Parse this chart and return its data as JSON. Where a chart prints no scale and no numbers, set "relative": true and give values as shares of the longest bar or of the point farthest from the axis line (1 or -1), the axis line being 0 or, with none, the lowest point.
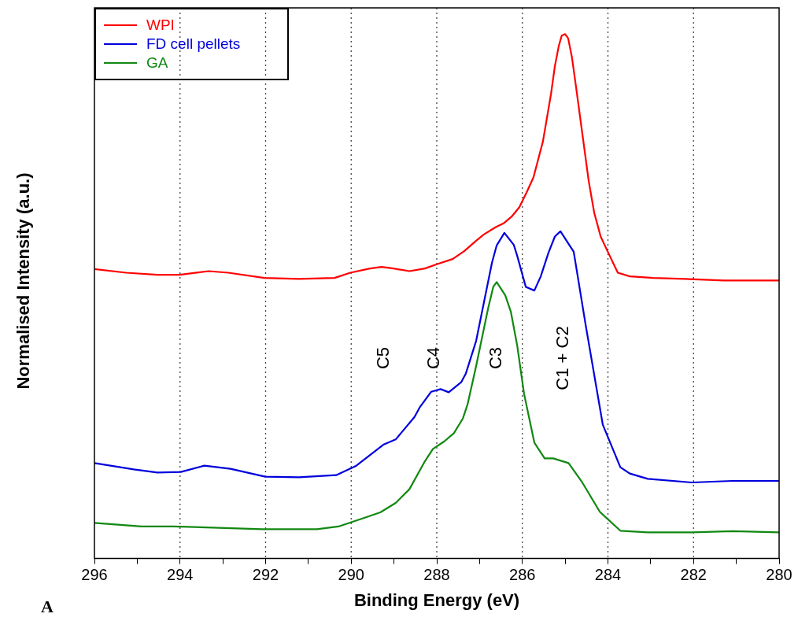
{
  "chart_data": {
    "type": "line",
    "relative": true,
    "xlabel": "Binding Energy (eV)",
    "ylabel": "Normalised Intensity (a.u.)",
    "xlim": [
      296,
      280
    ],
    "xticks": [
      296,
      {
        "value": 295,
        "label": null
      },
      294,
      {
        "value": 293,
        "label": null
      },
      292,
      {
        "value": 291,
        "label": null
      },
      290,
      {
        "value": 289,
        "label": null
      },
      288,
      {
        "value": 287,
        "label": null
      },
      286,
      {
        "value": 285,
        "label": null
      },
      284,
      {
        "value": 283,
        "label": null
      },
      282,
      {
        "value": 281,
        "label": null
      },
      280
    ],
    "legend": "top left",
    "grid": false,
    "marker": "none",
    "line_style": "solid",
    "ref_lines": [
      {
        "axis": "x",
        "value": 294,
        "color": "#444444",
        "line_style": "dotted"
      },
      {
        "axis": "x",
        "value": 292,
        "color": "#444444",
        "line_style": "dotted"
      },
      {
        "axis": "x",
        "value": 290,
        "color": "#444444",
        "line_style": "dotted"
      },
      {
        "axis": "x",
        "value": 288,
        "color": "#444444",
        "line_style": "dotted"
      },
      {
        "axis": "x",
        "value": 286,
        "color": "#444444",
        "line_style": "dotted"
      },
      {
        "axis": "x",
        "value": 284,
        "color": "#444444",
        "line_style": "dotted"
      },
      {
        "axis": "x",
        "value": 282,
        "color": "#444444",
        "line_style": "dotted"
      }
    ],
    "annotations": [
      "C5",
      "C4",
      "C3",
      "C1 + C2",
      "A"
    ],
    "series": [
      {
        "name": "WPI",
        "color": "#ff0000",
        "x": [
          296,
          295.26,
          294.53,
          294.01,
          293.33,
          292.87,
          292.03,
          291.22,
          290.39,
          290.02,
          289.56,
          289.29,
          289.01,
          288.64,
          288.28,
          288.0,
          287.63,
          287.36,
          287.08,
          286.9,
          286.62,
          286.44,
          286.25,
          286.07,
          285.98,
          285.89,
          285.74,
          285.52,
          285.33,
          285.24,
          285.15,
          285.08,
          285.0,
          284.93,
          284.84,
          284.75,
          284.6,
          284.45,
          284.32,
          284.17,
          284.01,
          283.77,
          283.49,
          282.94,
          282.21,
          281.29,
          280
        ],
        "values": [
          0.552,
          0.545,
          0.541,
          0.541,
          0.548,
          0.545,
          0.535,
          0.533,
          0.535,
          0.545,
          0.553,
          0.556,
          0.553,
          0.548,
          0.553,
          0.561,
          0.571,
          0.586,
          0.606,
          0.618,
          0.632,
          0.639,
          0.652,
          0.67,
          0.685,
          0.7,
          0.727,
          0.795,
          0.886,
          0.939,
          0.977,
          0.997,
          1,
          0.992,
          0.955,
          0.902,
          0.811,
          0.72,
          0.659,
          0.614,
          0.586,
          0.545,
          0.538,
          0.535,
          0.533,
          0.53,
          0.53
        ]
      },
      {
        "name": "FD cell pellets",
        "color": "#0000dd",
        "x": [
          296,
          295.08,
          294.53,
          293.98,
          293.43,
          292.82,
          292.01,
          291.22,
          290.35,
          289.88,
          289.25,
          288.96,
          288.52,
          288.4,
          288.13,
          287.91,
          287.72,
          287.43,
          287.32,
          287.08,
          286.71,
          286.6,
          286.42,
          286.2,
          286.12,
          285.92,
          285.72,
          285.57,
          285.39,
          285.24,
          285.11,
          284.8,
          284.52,
          284.12,
          283.71,
          283.49,
          283.07,
          282.04,
          281.1,
          280
        ],
        "values": [
          0.182,
          0.17,
          0.164,
          0.165,
          0.177,
          0.171,
          0.156,
          0.155,
          0.159,
          0.177,
          0.217,
          0.227,
          0.27,
          0.288,
          0.318,
          0.323,
          0.317,
          0.336,
          0.353,
          0.415,
          0.564,
          0.597,
          0.621,
          0.598,
          0.577,
          0.518,
          0.511,
          0.538,
          0.583,
          0.614,
          0.624,
          0.585,
          0.445,
          0.255,
          0.174,
          0.162,
          0.152,
          0.145,
          0.148,
          0.148
        ]
      },
      {
        "name": "GA",
        "color": "#118811",
        "x": [
          296,
          294.9,
          294.16,
          293.24,
          292.08,
          290.8,
          290.3,
          289.75,
          289.32,
          288.96,
          288.64,
          288.28,
          288.09,
          287.83,
          287.6,
          287.39,
          287.28,
          287.08,
          286.8,
          286.68,
          286.6,
          286.4,
          286.27,
          286.12,
          285.96,
          285.72,
          285.48,
          285.28,
          284.92,
          284.6,
          284.19,
          283.71,
          283.07,
          282.04,
          281.08,
          280
        ],
        "values": [
          0.068,
          0.061,
          0.061,
          0.059,
          0.056,
          0.056,
          0.061,
          0.076,
          0.088,
          0.106,
          0.132,
          0.185,
          0.209,
          0.223,
          0.239,
          0.267,
          0.294,
          0.367,
          0.477,
          0.518,
          0.527,
          0.502,
          0.471,
          0.406,
          0.314,
          0.221,
          0.191,
          0.191,
          0.182,
          0.145,
          0.089,
          0.053,
          0.05,
          0.05,
          0.052,
          0.05
        ]
      }
    ]
  }
}
